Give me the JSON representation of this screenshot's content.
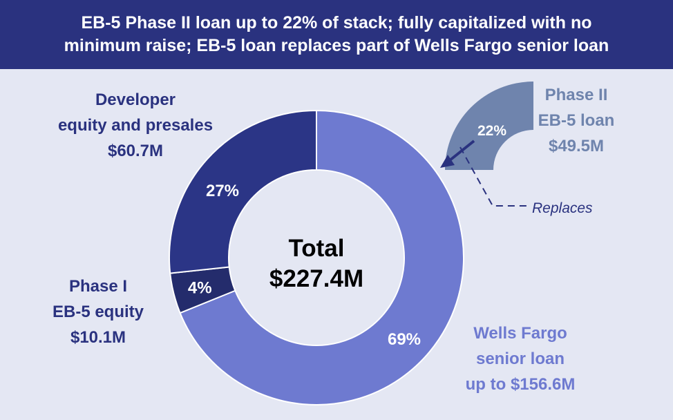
{
  "title": {
    "line1": "EB-5 Phase II loan up to 22% of stack; fully capitalized with no",
    "line2": "minimum raise; EB-5 loan replaces part of Wells Fargo senior loan"
  },
  "colors": {
    "title_bg": "#2a327f",
    "background": "#e4e7f3",
    "developer": "#2b3586",
    "phase1": "#242c6c",
    "wells_fargo": "#6e7ad0",
    "phase2": "#6f84ad"
  },
  "center": {
    "line1": "Total",
    "line2": "$227.4M"
  },
  "callouts": {
    "developer": [
      "Developer",
      "equity and presales",
      "$60.7M"
    ],
    "phase1": [
      "Phase I",
      "EB-5 equity",
      "$10.1M"
    ],
    "wells_fargo": [
      "Wells Fargo",
      "senior loan",
      "up to $156.6M"
    ],
    "phase2": [
      "Phase II",
      "EB-5 loan",
      "$49.5M"
    ],
    "replaces": "Replaces"
  },
  "chart_data": {
    "type": "pie",
    "variant": "donut",
    "total": "$227.4M",
    "slices": [
      {
        "name": "Wells Fargo senior loan",
        "value": 156.6,
        "unit": "$M",
        "percent_label": "69%",
        "color": "#6e7ad0"
      },
      {
        "name": "Phase I EB-5 equity",
        "value": 10.1,
        "unit": "$M",
        "percent_label": "4%",
        "color": "#242c6c"
      },
      {
        "name": "Developer equity and presales",
        "value": 60.7,
        "unit": "$M",
        "percent_label": "27%",
        "color": "#2b3586"
      }
    ],
    "exploded": {
      "name": "Phase II EB-5 loan",
      "value": 49.5,
      "unit": "$M",
      "percent_label": "22%",
      "replaces": "Wells Fargo senior loan",
      "color": "#6f84ad"
    }
  }
}
